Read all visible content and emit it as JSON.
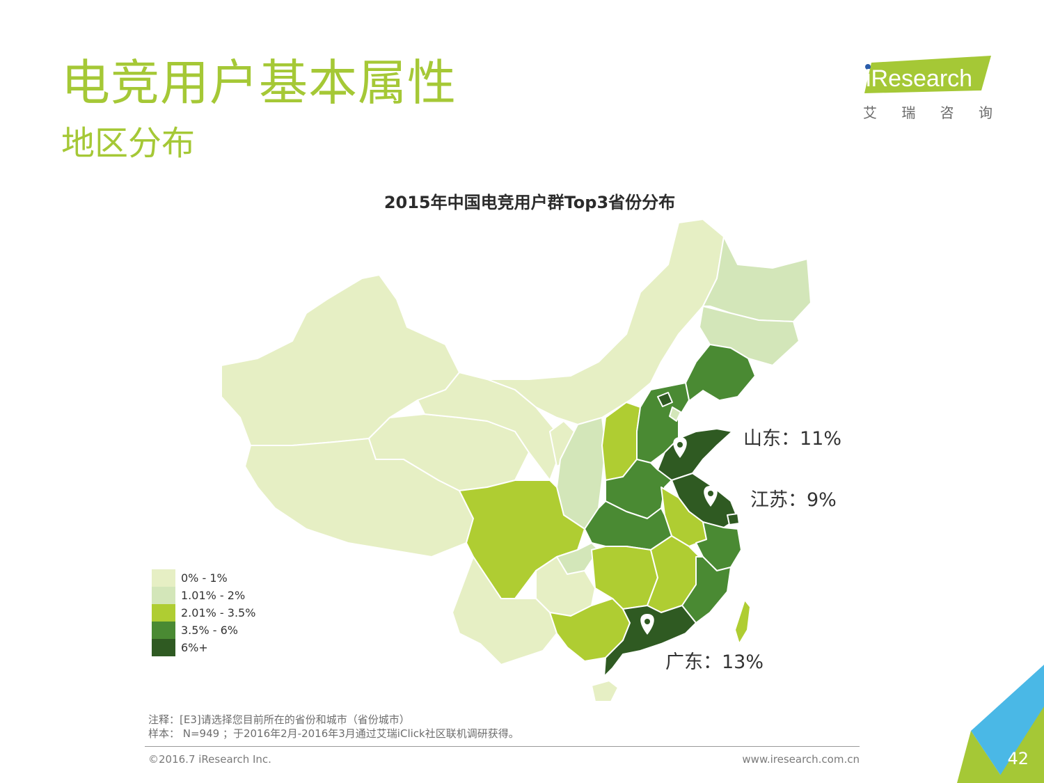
{
  "header": {
    "title": "电竞用户基本属性",
    "subtitle": "地区分布"
  },
  "logo": {
    "brand": "iResearch",
    "chinese": [
      "艾",
      "瑞",
      "咨",
      "询"
    ]
  },
  "map": {
    "title": "2015年中国电竞用户群Top3省份分布",
    "callouts": [
      {
        "label": "山东：11%",
        "province": "山东"
      },
      {
        "label": "江苏：9%",
        "province": "江苏"
      },
      {
        "label": "广东：13%",
        "province": "广东"
      }
    ],
    "legend": [
      {
        "label": "0% - 1%",
        "color": "#e6efc4"
      },
      {
        "label": "1.01% - 2%",
        "color": "#d3e6b9"
      },
      {
        "label": "2.01% - 3.5%",
        "color": "#afcd32"
      },
      {
        "label": "3.5% - 6%",
        "color": "#4a8a33"
      },
      {
        "label": "6%+",
        "color": "#2f5a22"
      }
    ]
  },
  "footer": {
    "note_line1": "注释：[E3]请选择您目前所在的省份和城市（省份城市）",
    "note_line2": "样本： N=949 ；于2016年2月-2016年3月通过艾瑞iClick社区联机调研获得。",
    "copyright": "©2016.7 iResearch Inc.",
    "website": "www.iresearch.com.cn",
    "page_number": "42"
  },
  "colors": {
    "accent": "#a5c836",
    "tier1": "#e6efc4",
    "tier2": "#d3e6b9",
    "tier3": "#afcd32",
    "tier4": "#4a8a33",
    "tier5": "#2f5a22"
  }
}
